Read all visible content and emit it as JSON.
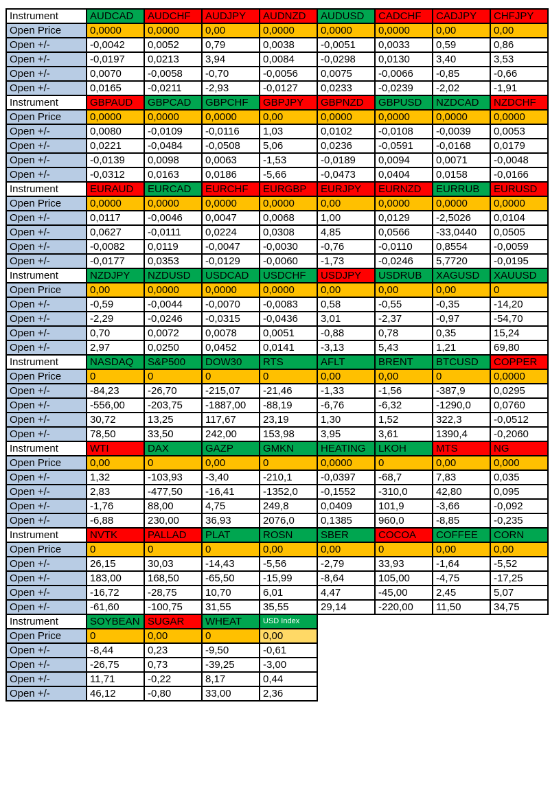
{
  "labels": {
    "instrument": "Instrument",
    "open_price": "Open Price",
    "open_change": "Open +/-"
  },
  "colors": {
    "green": "#00a650",
    "red": "#ff0000",
    "orange": "#ffc000",
    "light_orange": "#ffd966",
    "label_blue": "#b8cce4",
    "border": "#000000",
    "header_text_default": "#000000",
    "header_text_usd_index": "#ffffff"
  },
  "blocks": [
    {
      "instruments": [
        {
          "name": "AUDCAD",
          "color": "green",
          "open_price": "0,0000",
          "changes": [
            "-0,0042",
            "-0,0197",
            "0,0070",
            "0,0165"
          ]
        },
        {
          "name": "AUDCHF",
          "color": "red",
          "open_price": "0,0000",
          "changes": [
            "0,0052",
            "0,0213",
            "-0,0058",
            "-0,0211"
          ]
        },
        {
          "name": "AUDJPY",
          "color": "red",
          "open_price": "0,00",
          "changes": [
            "0,79",
            "3,94",
            "-0,70",
            "-2,93"
          ]
        },
        {
          "name": "AUDNZD",
          "color": "red",
          "open_price": "0,0000",
          "changes": [
            "0,0038",
            "0,0084",
            "-0,0056",
            "-0,0127"
          ]
        },
        {
          "name": "AUDUSD",
          "color": "green",
          "open_price": "0,0000",
          "changes": [
            "-0,0051",
            "-0,0298",
            "0,0075",
            "0,0233"
          ]
        },
        {
          "name": "CADCHF",
          "color": "red",
          "open_price": "0,0000",
          "changes": [
            "0,0033",
            "0,0130",
            "-0,0066",
            "-0,0239"
          ]
        },
        {
          "name": "CADJPY",
          "color": "red",
          "open_price": "0,00",
          "changes": [
            "0,59",
            "3,40",
            "-0,85",
            "-2,02"
          ]
        },
        {
          "name": "CHFJPY",
          "color": "red",
          "open_price": "0,00",
          "changes": [
            "0,86",
            "3,53",
            "-0,66",
            "-1,91"
          ]
        }
      ]
    },
    {
      "instruments": [
        {
          "name": "GBPAUD",
          "color": "red",
          "open_price": "0,0000",
          "changes": [
            "0,0080",
            "0,0221",
            "-0,0139",
            "-0,0312"
          ]
        },
        {
          "name": "GBPCAD",
          "color": "green",
          "open_price": "0,0000",
          "changes": [
            "-0,0109",
            "-0,0484",
            "0,0098",
            "0,0163"
          ]
        },
        {
          "name": "GBPCHF",
          "color": "green",
          "open_price": "0,0000",
          "changes": [
            "-0,0116",
            "-0,0508",
            "0,0063",
            "0,0186"
          ]
        },
        {
          "name": "GBPJPY",
          "color": "red",
          "open_price": "0,00",
          "changes": [
            "1,03",
            "5,06",
            "-1,53",
            "-5,66"
          ]
        },
        {
          "name": "GBPNZD",
          "color": "red",
          "open_price": "0,0000",
          "changes": [
            "0,0102",
            "0,0236",
            "-0,0189",
            "-0,0473"
          ]
        },
        {
          "name": "GBPUSD",
          "color": "green",
          "open_price": "0,0000",
          "changes": [
            "-0,0108",
            "-0,0591",
            "0,0094",
            "0,0404"
          ]
        },
        {
          "name": "NZDCAD",
          "color": "green",
          "open_price": "0,0000",
          "changes": [
            "-0,0039",
            "-0,0168",
            "0,0071",
            "0,0158"
          ]
        },
        {
          "name": "NZDCHF",
          "color": "red",
          "open_price": "0,0000",
          "changes": [
            "0,0053",
            "0,0179",
            "-0,0048",
            "-0,0166"
          ]
        }
      ]
    },
    {
      "instruments": [
        {
          "name": "EURAUD",
          "color": "red",
          "open_price": "0,0000",
          "changes": [
            "0,0117",
            "0,0627",
            "-0,0082",
            "-0,0177"
          ]
        },
        {
          "name": "EURCAD",
          "color": "green",
          "open_price": "0,0000",
          "changes": [
            "-0,0046",
            "-0,0111",
            "0,0119",
            "0,0353"
          ]
        },
        {
          "name": "EURCHF",
          "color": "red",
          "open_price": "0,0000",
          "changes": [
            "0,0047",
            "0,0224",
            "-0,0047",
            "-0,0129"
          ]
        },
        {
          "name": "EURGBP",
          "color": "red",
          "open_price": "0,0000",
          "changes": [
            "0,0068",
            "0,0308",
            "-0,0030",
            "-0,0060"
          ]
        },
        {
          "name": "EURJPY",
          "color": "red",
          "open_price": "0,00",
          "changes": [
            "1,00",
            "4,85",
            "-0,76",
            "-1,73"
          ]
        },
        {
          "name": "EURNZD",
          "color": "red",
          "open_price": "0,0000",
          "changes": [
            "0,0129",
            "0,0566",
            "-0,0110",
            "-0,0246"
          ]
        },
        {
          "name": "EURRUB",
          "color": "green",
          "open_price": "0,0000",
          "changes": [
            "-2,5026",
            "-33,0440",
            "0,8554",
            "5,7720"
          ]
        },
        {
          "name": "EURUSD",
          "color": "red",
          "open_price": "0,0000",
          "changes": [
            "0,0104",
            "0,0505",
            "-0,0059",
            "-0,0195"
          ]
        }
      ]
    },
    {
      "instruments": [
        {
          "name": "NZDJPY",
          "color": "green",
          "open_price": "0,00",
          "changes": [
            "-0,59",
            "-2,29",
            "0,70",
            "2,97"
          ]
        },
        {
          "name": "NZDUSD",
          "color": "green",
          "open_price": "0,0000",
          "changes": [
            "-0,0044",
            "-0,0246",
            "0,0072",
            "0,0250"
          ]
        },
        {
          "name": "USDCAD",
          "color": "green",
          "open_price": "0,0000",
          "changes": [
            "-0,0070",
            "-0,0315",
            "0,0078",
            "0,0452"
          ]
        },
        {
          "name": "USDCHF",
          "color": "green",
          "open_price": "0,0000",
          "changes": [
            "-0,0083",
            "-0,0436",
            "0,0051",
            "0,0141"
          ]
        },
        {
          "name": "USDJPY",
          "color": "red",
          "open_price": "0,00",
          "changes": [
            "0,58",
            "3,01",
            "-0,88",
            "-3,13"
          ]
        },
        {
          "name": "USDRUB",
          "color": "green",
          "open_price": "0,00",
          "changes": [
            "-0,55",
            "-2,37",
            "0,78",
            "5,43"
          ]
        },
        {
          "name": "XAGUSD",
          "color": "green",
          "open_price": "0,00",
          "changes": [
            "-0,35",
            "-0,97",
            "0,35",
            "1,21"
          ]
        },
        {
          "name": "XAUUSD",
          "color": "green",
          "open_price": "0",
          "changes": [
            "-14,20",
            "-54,70",
            "15,24",
            "69,80"
          ]
        }
      ]
    },
    {
      "instruments": [
        {
          "name": "NASDAQ",
          "color": "green",
          "open_price": "0",
          "changes": [
            "-84,23",
            "-556,00",
            "30,72",
            "78,50"
          ]
        },
        {
          "name": "S&P500",
          "color": "green",
          "open_price": "0",
          "changes": [
            "-26,70",
            "-203,75",
            "13,25",
            "33,50"
          ]
        },
        {
          "name": "DOW30",
          "color": "green",
          "open_price": "0",
          "changes": [
            "-215,07",
            "-1887,00",
            "117,67",
            "242,00"
          ]
        },
        {
          "name": "RTS",
          "color": "green",
          "open_price": "0",
          "changes": [
            "-21,46",
            "-88,19",
            "23,19",
            "153,98"
          ]
        },
        {
          "name": "AFLT",
          "color": "green",
          "open_price": "0,00",
          "changes": [
            "-1,33",
            "-6,76",
            "1,30",
            "3,95"
          ]
        },
        {
          "name": "BRENT",
          "color": "green",
          "open_price": "0,00",
          "changes": [
            "-1,56",
            "-6,32",
            "1,52",
            "3,61"
          ]
        },
        {
          "name": "BTCUSD",
          "color": "green",
          "open_price": "0",
          "changes": [
            "-387,9",
            "-1290,0",
            "322,3",
            "1390,4"
          ]
        },
        {
          "name": "COPPER",
          "color": "red",
          "open_price": "0,0000",
          "changes": [
            "0,0295",
            "0,0760",
            "-0,0512",
            "-0,2060"
          ]
        }
      ]
    },
    {
      "instruments": [
        {
          "name": "WTI",
          "color": "red",
          "open_price": "0,00",
          "changes": [
            "1,32",
            "2,83",
            "-1,76",
            "-6,88"
          ]
        },
        {
          "name": "DAX",
          "color": "green",
          "open_price": "0",
          "changes": [
            "-103,93",
            "-477,50",
            "88,00",
            "230,00"
          ]
        },
        {
          "name": "GAZP",
          "color": "green",
          "open_price": "0,00",
          "changes": [
            "-3,40",
            "-16,41",
            "4,75",
            "36,93"
          ]
        },
        {
          "name": "GMKN",
          "color": "green",
          "open_price": "0",
          "changes": [
            "-210,1",
            "-1352,0",
            "249,8",
            "2076,0"
          ]
        },
        {
          "name": "HEATING",
          "color": "green",
          "open_price": "0,0000",
          "changes": [
            "-0,0397",
            "-0,1552",
            "0,0409",
            "0,1385"
          ]
        },
        {
          "name": "LKOH",
          "color": "green",
          "open_price": "0",
          "changes": [
            "-68,7",
            "-310,0",
            "101,9",
            "960,0"
          ]
        },
        {
          "name": "MTS",
          "color": "red",
          "open_price": "0,00",
          "changes": [
            "7,83",
            "42,80",
            "-3,66",
            "-8,85"
          ]
        },
        {
          "name": "NG",
          "color": "red",
          "open_price": "0,000",
          "changes": [
            "0,035",
            "0,095",
            "-0,092",
            "-0,235"
          ]
        }
      ]
    },
    {
      "instruments": [
        {
          "name": "NVTK",
          "color": "red",
          "open_price": "0",
          "changes": [
            "26,15",
            "183,00",
            "-16,72",
            "-61,60"
          ]
        },
        {
          "name": "PALLAD",
          "color": "red",
          "open_price": "0",
          "changes": [
            "30,03",
            "168,50",
            "-28,75",
            "-100,75"
          ]
        },
        {
          "name": "PLAT",
          "color": "green",
          "open_price": "0",
          "changes": [
            "-14,43",
            "-65,50",
            "10,70",
            "31,55"
          ]
        },
        {
          "name": "ROSN",
          "color": "green",
          "open_price": "0,00",
          "changes": [
            "-5,56",
            "-15,99",
            "6,01",
            "35,55"
          ]
        },
        {
          "name": "SBER",
          "color": "green",
          "open_price": "0,00",
          "changes": [
            "-2,79",
            "-8,64",
            "4,47",
            "29,14"
          ]
        },
        {
          "name": "COCOA",
          "color": "red",
          "open_price": "0",
          "changes": [
            "33,93",
            "105,00",
            "-45,00",
            "-220,00"
          ]
        },
        {
          "name": "COFFEE",
          "color": "green",
          "open_price": "0,00",
          "changes": [
            "-1,64",
            "-4,75",
            "2,45",
            "11,50"
          ]
        },
        {
          "name": "CORN",
          "color": "green",
          "open_price": "0,00",
          "changes": [
            "-5,52",
            "-17,25",
            "5,07",
            "34,75"
          ]
        }
      ]
    },
    {
      "instruments": [
        {
          "name": "SOYBEAN",
          "color": "green",
          "open_price": "0",
          "changes": [
            "-8,44",
            "-26,75",
            "11,71",
            "46,12"
          ]
        },
        {
          "name": "SUGAR",
          "color": "red",
          "open_price": "0,00",
          "changes": [
            "0,23",
            "0,73",
            "-0,22",
            "-0,80"
          ]
        },
        {
          "name": "WHEAT",
          "color": "green",
          "open_price": "0",
          "changes": [
            "-9,50",
            "-39,25",
            "8,17",
            "33,00"
          ]
        },
        {
          "name": "USD Index",
          "color": "green",
          "small_header": true,
          "header_text": "white",
          "price_bg": "light_orange",
          "open_price": "0,00",
          "changes": [
            "-0,61",
            "-3,00",
            "0,44",
            "2,36"
          ]
        }
      ]
    }
  ]
}
